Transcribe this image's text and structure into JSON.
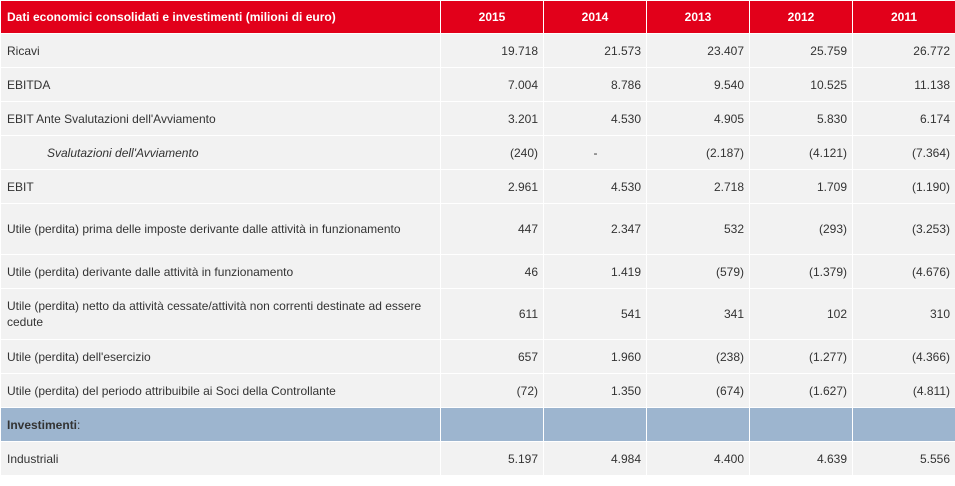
{
  "table": {
    "header": {
      "label": "Dati economici consolidati e investimenti (milioni di euro)",
      "years": [
        "2015",
        "2014",
        "2013",
        "2012",
        "2011"
      ]
    },
    "rows": [
      {
        "label": "Ricavi",
        "values": [
          "19.718",
          "21.573",
          "23.407",
          "25.759",
          "26.772"
        ]
      },
      {
        "label": "EBITDA",
        "values": [
          "7.004",
          "8.786",
          "9.540",
          "10.525",
          "11.138"
        ]
      },
      {
        "label": "EBIT Ante Svalutazioni dell'Avviamento",
        "values": [
          "3.201",
          "4.530",
          "4.905",
          "5.830",
          "6.174"
        ]
      },
      {
        "label": "Svalutazioni dell'Avviamento",
        "values": [
          "(240)",
          "-",
          "(2.187)",
          "(4.121)",
          "(7.364)"
        ]
      },
      {
        "label": "EBIT",
        "values": [
          "2.961",
          "4.530",
          "2.718",
          "1.709",
          "(1.190)"
        ]
      },
      {
        "label": "Utile (perdita)  prima delle imposte derivante dalle attività in funzionamento",
        "values": [
          "447",
          "2.347",
          "532",
          "(293)",
          "(3.253)"
        ]
      },
      {
        "label": "Utile (perdita) derivante dalle attività in funzionamento",
        "values": [
          "46",
          "1.419",
          "(579)",
          "(1.379)",
          "(4.676)"
        ]
      },
      {
        "label": "Utile (perdita) netto da attività cessate/attività non correnti destinate ad essere cedute",
        "values": [
          "611",
          "541",
          "341",
          "102",
          "310"
        ]
      },
      {
        "label": "Utile (perdita) dell'esercizio",
        "values": [
          "657",
          "1.960",
          "(238)",
          "(1.277)",
          "(4.366)"
        ]
      },
      {
        "label": "Utile (perdita) del periodo attribuibile ai Soci della Controllante",
        "values": [
          "(72)",
          "1.350",
          "(674)",
          "(1.627)",
          "(4.811)"
        ]
      }
    ],
    "section": {
      "label": "Investimenti",
      "suffix": ":"
    },
    "section_rows": [
      {
        "label": "Industriali",
        "values": [
          "5.197",
          "4.984",
          "4.400",
          "4.639",
          "5.556"
        ]
      }
    ]
  },
  "colors": {
    "header_bg": "#e2001a",
    "row_bg": "#f2f2f2",
    "section_bg": "#9db5cf"
  }
}
